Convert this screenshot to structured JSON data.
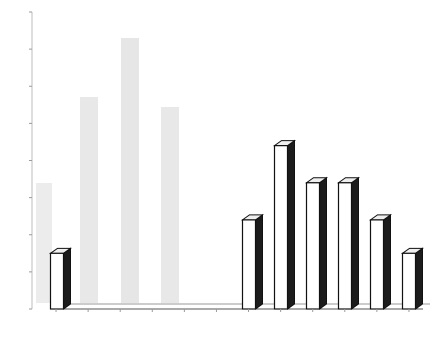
{
  "chart_data": {
    "type": "bar",
    "style": "3d-column",
    "categories": [
      "",
      "",
      "",
      "",
      "",
      "",
      "",
      "",
      "",
      "",
      "",
      ""
    ],
    "values": [
      1.5,
      0,
      0,
      0,
      0,
      0,
      2.4,
      4.4,
      3.4,
      3.4,
      2.4,
      1.5
    ],
    "ylim": [
      0,
      8
    ],
    "y_ticks": [
      0,
      1,
      2,
      3,
      4,
      5,
      6,
      7,
      8
    ],
    "xlabel": "",
    "ylabel": "",
    "grid": false,
    "legend": "none",
    "colors": {
      "bar_front": "#ffffff",
      "bar_side": "#1c1c1c",
      "bar_top": "#efefef",
      "outline": "#111111",
      "axis": "#555555",
      "tick": "#555555",
      "ghost": "#d9d9d9"
    }
  }
}
